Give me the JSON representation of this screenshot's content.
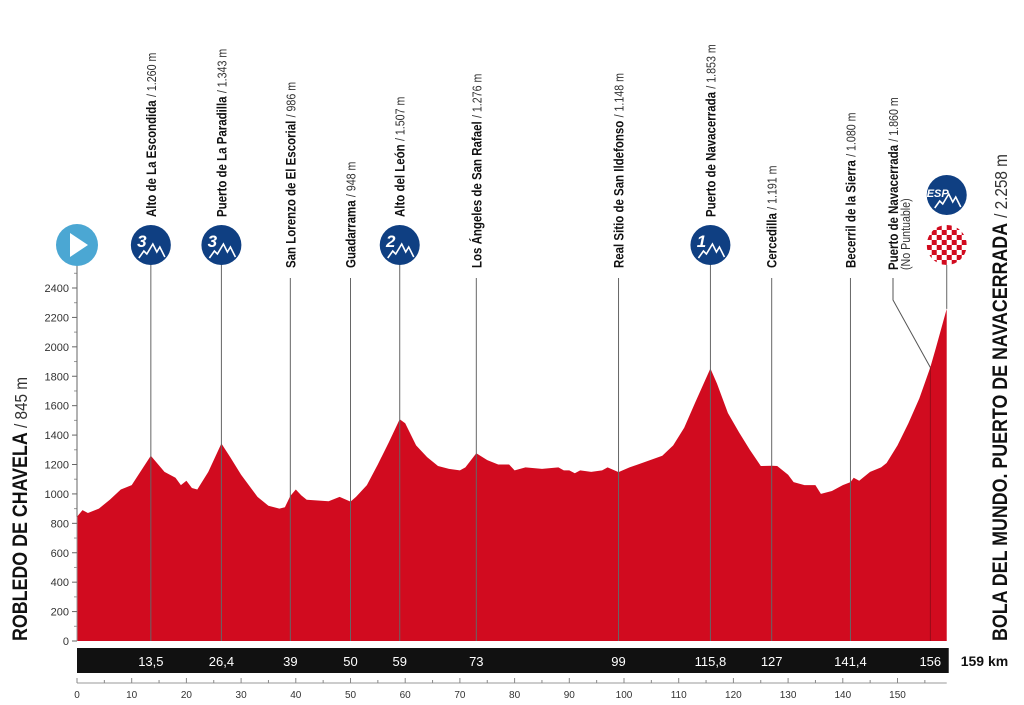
{
  "chart_data": {
    "type": "area",
    "title": "",
    "xlabel": "",
    "ylabel": "",
    "xlim": [
      0,
      159
    ],
    "ylim": [
      0,
      2400
    ],
    "x_ticks": [
      0,
      10,
      20,
      30,
      40,
      50,
      60,
      70,
      80,
      90,
      100,
      110,
      120,
      130,
      140,
      150
    ],
    "y_ticks": [
      0,
      200,
      400,
      600,
      800,
      1000,
      1200,
      1400,
      1600,
      1800,
      2000,
      2200,
      2400
    ],
    "grid": false,
    "fill_color": "#d10b1f",
    "start": {
      "name": "ROBLEDO DE CHAVELA",
      "elevation": "/ 845 m",
      "icon": "start-play-icon",
      "color": "#4ba7d3"
    },
    "finish": {
      "name": "BOLA DEL MUNDO. PUERTO DE NAVACERRADA",
      "elevation": "/ 2.258 m",
      "icons": [
        "esp-mountain-icon",
        "checkered-finish-icon"
      ],
      "total_km": "159 km"
    },
    "profile": [
      [
        0,
        845
      ],
      [
        1,
        890
      ],
      [
        2,
        870
      ],
      [
        4,
        900
      ],
      [
        6,
        960
      ],
      [
        8,
        1030
      ],
      [
        10,
        1060
      ],
      [
        13.5,
        1260
      ],
      [
        16,
        1150
      ],
      [
        18,
        1110
      ],
      [
        19,
        1060
      ],
      [
        20,
        1090
      ],
      [
        21,
        1040
      ],
      [
        22,
        1030
      ],
      [
        24,
        1150
      ],
      [
        26.4,
        1343
      ],
      [
        28,
        1250
      ],
      [
        30,
        1130
      ],
      [
        33,
        980
      ],
      [
        35,
        920
      ],
      [
        37,
        900
      ],
      [
        38,
        910
      ],
      [
        39,
        986
      ],
      [
        40,
        1030
      ],
      [
        41,
        990
      ],
      [
        42,
        960
      ],
      [
        44,
        955
      ],
      [
        46,
        950
      ],
      [
        48,
        980
      ],
      [
        50,
        948
      ],
      [
        51,
        980
      ],
      [
        53,
        1060
      ],
      [
        55,
        1200
      ],
      [
        57,
        1350
      ],
      [
        59,
        1507
      ],
      [
        60,
        1480
      ],
      [
        62,
        1330
      ],
      [
        64,
        1250
      ],
      [
        66,
        1190
      ],
      [
        68,
        1170
      ],
      [
        70,
        1160
      ],
      [
        71,
        1180
      ],
      [
        73,
        1276
      ],
      [
        75,
        1230
      ],
      [
        77,
        1200
      ],
      [
        79,
        1200
      ],
      [
        80,
        1160
      ],
      [
        82,
        1180
      ],
      [
        85,
        1170
      ],
      [
        88,
        1180
      ],
      [
        89,
        1160
      ],
      [
        90,
        1160
      ],
      [
        91,
        1140
      ],
      [
        92,
        1160
      ],
      [
        94,
        1150
      ],
      [
        96,
        1160
      ],
      [
        97,
        1180
      ],
      [
        99,
        1148
      ],
      [
        101,
        1180
      ],
      [
        104,
        1220
      ],
      [
        107,
        1260
      ],
      [
        109,
        1330
      ],
      [
        111,
        1450
      ],
      [
        113,
        1620
      ],
      [
        115.8,
        1853
      ],
      [
        117,
        1750
      ],
      [
        119,
        1550
      ],
      [
        121,
        1420
      ],
      [
        123,
        1300
      ],
      [
        125,
        1190
      ],
      [
        127,
        1191
      ],
      [
        128,
        1190
      ],
      [
        130,
        1130
      ],
      [
        131,
        1080
      ],
      [
        133,
        1060
      ],
      [
        135,
        1060
      ],
      [
        136,
        1000
      ],
      [
        138,
        1020
      ],
      [
        140,
        1060
      ],
      [
        141.4,
        1080
      ],
      [
        142,
        1110
      ],
      [
        143,
        1090
      ],
      [
        145,
        1150
      ],
      [
        147,
        1180
      ],
      [
        148,
        1210
      ],
      [
        150,
        1330
      ],
      [
        152,
        1480
      ],
      [
        154,
        1650
      ],
      [
        156,
        1860
      ],
      [
        157,
        1990
      ],
      [
        159,
        2258
      ]
    ],
    "points": [
      {
        "km": 13.5,
        "km_label": "13,5",
        "name": "Alto de La Escondida",
        "elevation": "/ 1.260 m",
        "category": "3"
      },
      {
        "km": 26.4,
        "km_label": "26,4",
        "name": "Puerto de La Paradilla",
        "elevation": "/ 1.343 m",
        "category": "3"
      },
      {
        "km": 39,
        "km_label": "39",
        "name": "San Lorenzo de El Escorial",
        "elevation": "/ 986 m",
        "category": ""
      },
      {
        "km": 50,
        "km_label": "50",
        "name": "Guadarrama",
        "elevation": "/ 948 m",
        "category": ""
      },
      {
        "km": 59,
        "km_label": "59",
        "name": "Alto del León",
        "elevation": "/ 1.507 m",
        "category": "2"
      },
      {
        "km": 73,
        "km_label": "73",
        "name": "Los Ángeles de San Rafael",
        "elevation": "/ 1.276 m",
        "category": ""
      },
      {
        "km": 99,
        "km_label": "99",
        "name": "Real Sitio de San Ildefonso",
        "elevation": "/ 1.148 m",
        "category": ""
      },
      {
        "km": 115.8,
        "km_label": "115,8",
        "name": "Puerto de Navacerrada",
        "elevation": "/ 1.853 m",
        "category": "1"
      },
      {
        "km": 127,
        "km_label": "127",
        "name": "Cercedilla",
        "elevation": "/ 1.191 m",
        "category": ""
      },
      {
        "km": 141.4,
        "km_label": "141,4",
        "name": "Becerril de la Sierra",
        "elevation": "/ 1.080 m",
        "category": ""
      },
      {
        "km": 156,
        "km_label": "156",
        "name": "Puerto de Navacerrada",
        "elevation": "/ 1.860 m",
        "note": "(No Puntuable)",
        "category": ""
      }
    ],
    "esp_label": "ESP",
    "mountain_color": "#0f3f82"
  }
}
